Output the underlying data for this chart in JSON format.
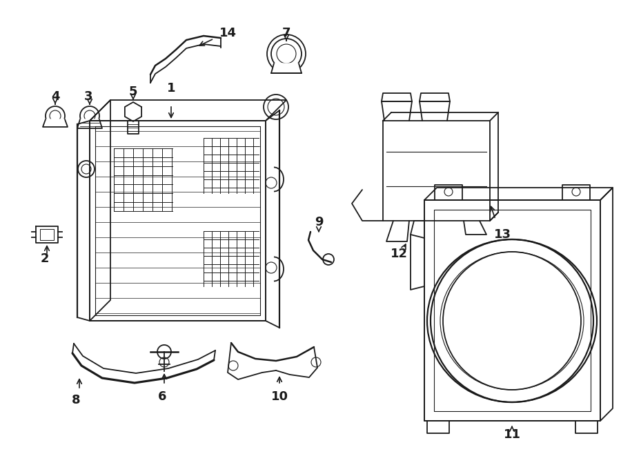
{
  "bg_color": "#ffffff",
  "line_color": "#1a1a1a",
  "figsize": [
    9.0,
    6.61
  ],
  "dpi": 100,
  "xlim": [
    0,
    900
  ],
  "ylim": [
    0,
    661
  ]
}
